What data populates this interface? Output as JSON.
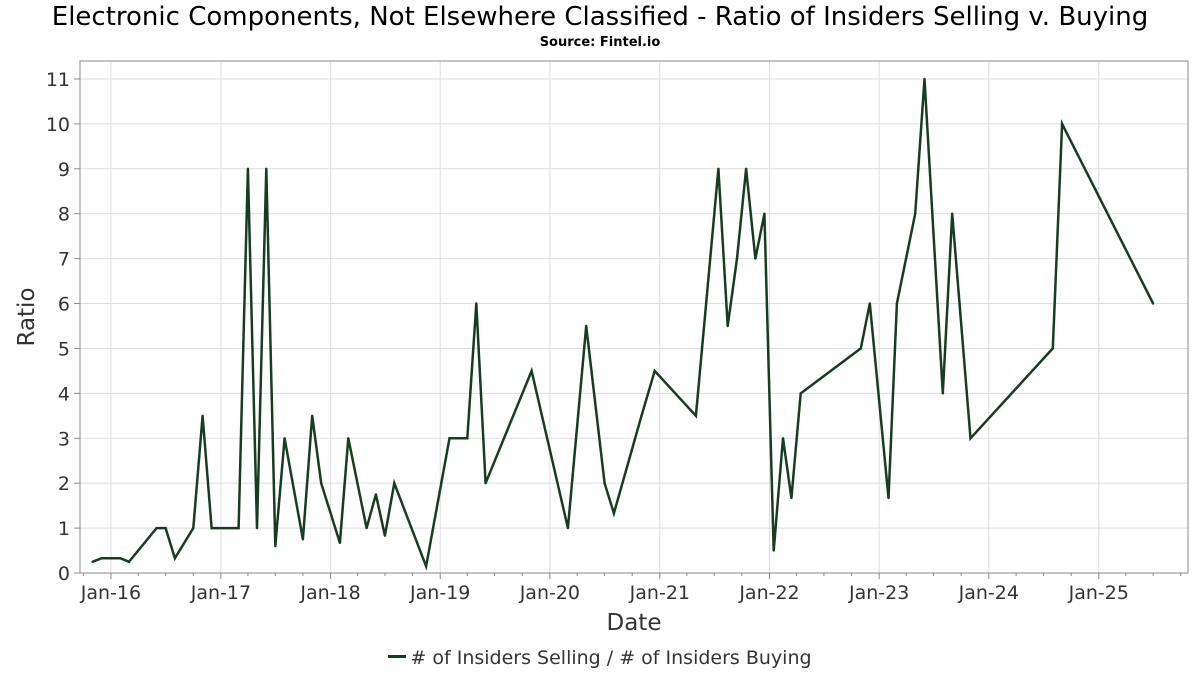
{
  "header": {
    "title": "Electronic Components, Not Elsewhere Classified - Ratio of Insiders Selling v. Buying",
    "subtitle": "Source: Fintel.io"
  },
  "colors": {
    "line": "#173d20",
    "grid": "#dddddd",
    "axis": "#888888"
  },
  "chart_data": {
    "type": "line",
    "title": "Electronic Components, Not Elsewhere Classified - Ratio of Insiders Selling v. Buying",
    "subtitle": "Source: Fintel.io",
    "xlabel": "Date",
    "ylabel": "Ratio",
    "ylim": [
      0,
      11.4
    ],
    "yticks": [
      0,
      1,
      2,
      3,
      4,
      5,
      6,
      7,
      8,
      9,
      10,
      11
    ],
    "xlim": [
      "2015-09-20",
      "2025-10-25"
    ],
    "xticks": [
      {
        "date": "2016-01-01",
        "label": "Jan-16"
      },
      {
        "date": "2017-01-01",
        "label": "Jan-17"
      },
      {
        "date": "2018-01-01",
        "label": "Jan-18"
      },
      {
        "date": "2019-01-01",
        "label": "Jan-19"
      },
      {
        "date": "2020-01-01",
        "label": "Jan-20"
      },
      {
        "date": "2021-01-01",
        "label": "Jan-21"
      },
      {
        "date": "2022-01-01",
        "label": "Jan-22"
      },
      {
        "date": "2023-01-01",
        "label": "Jan-23"
      },
      {
        "date": "2024-01-01",
        "label": "Jan-24"
      },
      {
        "date": "2025-01-01",
        "label": "Jan-25"
      }
    ],
    "grid": true,
    "legend_position": "bottom-center",
    "series": [
      {
        "name": "# of Insiders Selling / # of Insiders Buying",
        "x": [
          "2015-11-01",
          "2015-12-01",
          "2016-01-01",
          "2016-02-01",
          "2016-03-01",
          "2016-06-01",
          "2016-07-01",
          "2016-08-01",
          "2016-10-01",
          "2016-11-01",
          "2016-12-01",
          "2017-03-01",
          "2017-04-01",
          "2017-05-01",
          "2017-06-01",
          "2017-07-01",
          "2017-08-01",
          "2017-10-01",
          "2017-11-01",
          "2017-12-01",
          "2018-02-01",
          "2018-03-01",
          "2018-05-01",
          "2018-06-01",
          "2018-07-01",
          "2018-08-01",
          "2018-11-15",
          "2019-02-01",
          "2019-04-01",
          "2019-05-01",
          "2019-06-01",
          "2019-11-01",
          "2020-03-01",
          "2020-05-01",
          "2020-07-01",
          "2020-08-01",
          "2020-11-01",
          "2020-12-15",
          "2021-05-01",
          "2021-07-15",
          "2021-08-15",
          "2021-09-15",
          "2021-10-15",
          "2021-11-15",
          "2021-12-15",
          "2022-01-15",
          "2022-02-15",
          "2022-03-15",
          "2022-04-15",
          "2022-11-01",
          "2022-12-01",
          "2023-02-01",
          "2023-03-01",
          "2023-05-01",
          "2023-06-01",
          "2023-08-01",
          "2023-09-01",
          "2023-11-01",
          "2024-08-01",
          "2024-09-01",
          "2025-07-01"
        ],
        "values": [
          0.25,
          0.33,
          0.33,
          0.33,
          0.25,
          1,
          1,
          0.33,
          1,
          3.5,
          1,
          1,
          9,
          1,
          9,
          0.6,
          3,
          0.75,
          3.5,
          2,
          0.67,
          3,
          1,
          1.75,
          0.83,
          2,
          0.15,
          3,
          3,
          6,
          2,
          4.5,
          1,
          5.5,
          2,
          1.33,
          3.5,
          4.5,
          3.5,
          9,
          5.5,
          7,
          9,
          7,
          8,
          0.5,
          3,
          1.67,
          4,
          5,
          6,
          1.67,
          6,
          8,
          11,
          4,
          8,
          3,
          5,
          10,
          6
        ]
      }
    ]
  }
}
